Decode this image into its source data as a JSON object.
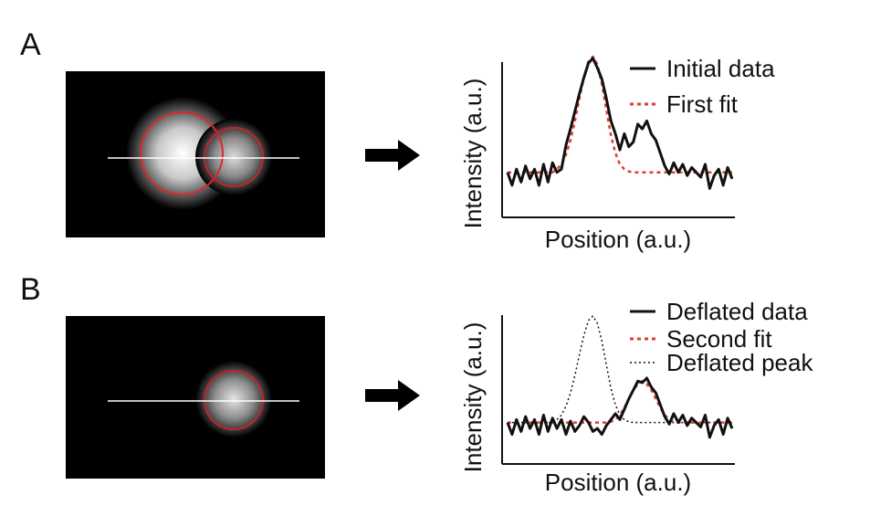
{
  "panels": [
    {
      "id": "A",
      "label": "A",
      "plot": {
        "xlabel": "Position (a.u.)",
        "ylabel": "Intensity (a.u.)",
        "legend": [
          {
            "label": "Initial data",
            "style": "solid",
            "color": "#111111"
          },
          {
            "label": "First fit",
            "style": "dashed",
            "color": "#e23b2e"
          }
        ]
      }
    },
    {
      "id": "B",
      "label": "B",
      "plot": {
        "xlabel": "Position (a.u.)",
        "ylabel": "Intensity (a.u.)",
        "legend": [
          {
            "label": "Deflated data",
            "style": "solid",
            "color": "#111111"
          },
          {
            "label": "Second fit",
            "style": "dashed",
            "color": "#e23b2e"
          },
          {
            "label": "Deflated peak",
            "style": "dotted",
            "color": "#111111"
          }
        ]
      }
    }
  ],
  "chart_data": [
    {
      "type": "line",
      "xlabel": "Position (a.u.)",
      "ylabel": "Intensity (a.u.)",
      "x": [
        0,
        1,
        2,
        3,
        4,
        5,
        6,
        7,
        8,
        9,
        10,
        11,
        12,
        13,
        14,
        15,
        16,
        17,
        18,
        19,
        20,
        21,
        22,
        23,
        24,
        25,
        26,
        27,
        28,
        29,
        30,
        31,
        32,
        33,
        34,
        35,
        36,
        37,
        38,
        39,
        40,
        41,
        42,
        43,
        44,
        45,
        46,
        47,
        48,
        49,
        50
      ],
      "ylim": [
        0,
        1
      ],
      "series": [
        {
          "name": "Initial data",
          "values": [
            0.28,
            0.2,
            0.3,
            0.22,
            0.32,
            0.24,
            0.3,
            0.2,
            0.33,
            0.22,
            0.34,
            0.28,
            0.3,
            0.45,
            0.55,
            0.66,
            0.77,
            0.87,
            0.96,
            0.99,
            0.93,
            0.86,
            0.74,
            0.6,
            0.52,
            0.42,
            0.52,
            0.44,
            0.47,
            0.58,
            0.55,
            0.6,
            0.52,
            0.48,
            0.4,
            0.32,
            0.27,
            0.34,
            0.28,
            0.33,
            0.26,
            0.31,
            0.28,
            0.25,
            0.33,
            0.18,
            0.26,
            0.3,
            0.2,
            0.31,
            0.24
          ]
        },
        {
          "name": "First fit",
          "values": [
            0.28,
            0.28,
            0.28,
            0.28,
            0.28,
            0.28,
            0.28,
            0.28,
            0.28,
            0.28,
            0.28,
            0.3,
            0.33,
            0.39,
            0.48,
            0.6,
            0.74,
            0.87,
            0.97,
            1.0,
            0.95,
            0.83,
            0.67,
            0.51,
            0.4,
            0.33,
            0.3,
            0.285,
            0.28,
            0.28,
            0.28,
            0.28,
            0.28,
            0.28,
            0.28,
            0.28,
            0.28,
            0.28,
            0.28,
            0.28,
            0.28,
            0.28,
            0.28,
            0.28,
            0.28,
            0.28,
            0.28,
            0.28,
            0.28,
            0.28,
            0.28
          ]
        }
      ]
    },
    {
      "type": "line",
      "xlabel": "Position (a.u.)",
      "ylabel": "Intensity (a.u.)",
      "x": [
        0,
        1,
        2,
        3,
        4,
        5,
        6,
        7,
        8,
        9,
        10,
        11,
        12,
        13,
        14,
        15,
        16,
        17,
        18,
        19,
        20,
        21,
        22,
        23,
        24,
        25,
        26,
        27,
        28,
        29,
        30,
        31,
        32,
        33,
        34,
        35,
        36,
        37,
        38,
        39,
        40,
        41,
        42,
        43,
        44,
        45,
        46,
        47,
        48,
        49,
        50
      ],
      "ylim": [
        0,
        1
      ],
      "series": [
        {
          "name": "Deflated data",
          "values": [
            0.28,
            0.2,
            0.3,
            0.22,
            0.32,
            0.24,
            0.3,
            0.2,
            0.33,
            0.22,
            0.31,
            0.24,
            0.3,
            0.2,
            0.29,
            0.22,
            0.26,
            0.32,
            0.28,
            0.22,
            0.24,
            0.2,
            0.26,
            0.3,
            0.34,
            0.3,
            0.37,
            0.44,
            0.5,
            0.56,
            0.55,
            0.58,
            0.52,
            0.48,
            0.4,
            0.32,
            0.27,
            0.34,
            0.28,
            0.33,
            0.26,
            0.31,
            0.28,
            0.25,
            0.33,
            0.18,
            0.26,
            0.3,
            0.2,
            0.31,
            0.24
          ]
        },
        {
          "name": "Second fit",
          "values": [
            0.28,
            0.28,
            0.28,
            0.28,
            0.28,
            0.28,
            0.28,
            0.28,
            0.28,
            0.28,
            0.28,
            0.28,
            0.28,
            0.28,
            0.28,
            0.28,
            0.28,
            0.28,
            0.28,
            0.28,
            0.28,
            0.28,
            0.28,
            0.285,
            0.3,
            0.33,
            0.38,
            0.44,
            0.5,
            0.54,
            0.56,
            0.54,
            0.5,
            0.44,
            0.38,
            0.33,
            0.3,
            0.285,
            0.28,
            0.28,
            0.28,
            0.28,
            0.28,
            0.28,
            0.28,
            0.28,
            0.28,
            0.28,
            0.28,
            0.28,
            0.28
          ]
        },
        {
          "name": "Deflated peak",
          "values": [
            0.28,
            0.28,
            0.28,
            0.28,
            0.28,
            0.28,
            0.28,
            0.28,
            0.28,
            0.28,
            0.28,
            0.3,
            0.33,
            0.39,
            0.48,
            0.6,
            0.74,
            0.87,
            0.97,
            1.0,
            0.95,
            0.83,
            0.67,
            0.51,
            0.4,
            0.33,
            0.3,
            0.285,
            0.28,
            0.28,
            0.28,
            0.28,
            0.28,
            0.28,
            0.28,
            0.28,
            0.28,
            0.28,
            0.28,
            0.28,
            0.28,
            0.28,
            0.28,
            0.28,
            0.28,
            0.28,
            0.28,
            0.28,
            0.28,
            0.28,
            0.28
          ]
        }
      ]
    }
  ]
}
